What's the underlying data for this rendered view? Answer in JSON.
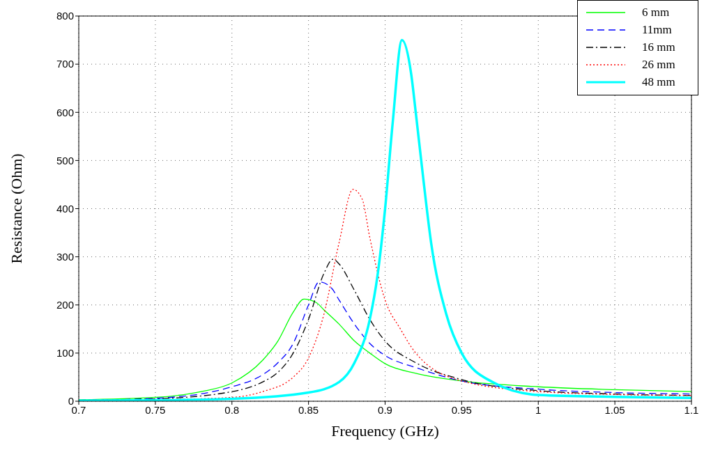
{
  "chart_data": {
    "type": "line",
    "xlabel": "Frequency (GHz)",
    "ylabel": "Resistance  (Ohm)",
    "xlim": [
      0.7,
      1.1
    ],
    "xticks": [
      0.7,
      0.75,
      0.8,
      0.85,
      0.9,
      0.95,
      1,
      1.05,
      1.1
    ],
    "ylim": [
      0,
      800
    ],
    "yticks": [
      0,
      100,
      200,
      300,
      400,
      500,
      600,
      700,
      800
    ],
    "grid": true,
    "legend": "top right",
    "marker": "none",
    "series": [
      {
        "name": "6 mm",
        "color": "#00ff00",
        "line_style": "solid",
        "x": [
          0.7,
          0.75,
          0.78,
          0.8,
          0.82,
          0.83,
          0.84,
          0.847,
          0.855,
          0.86,
          0.87,
          0.88,
          0.89,
          0.9,
          0.92,
          0.95,
          1.0,
          1.05,
          1.1
        ],
        "values": [
          3,
          8,
          20,
          38,
          85,
          125,
          185,
          212,
          205,
          190,
          160,
          125,
          100,
          78,
          58,
          42,
          30,
          24,
          20
        ]
      },
      {
        "name": "11mm",
        "color": "#0000ff",
        "line_style": "dashed",
        "x": [
          0.7,
          0.75,
          0.8,
          0.82,
          0.83,
          0.84,
          0.85,
          0.857,
          0.865,
          0.87,
          0.88,
          0.89,
          0.9,
          0.92,
          0.95,
          1.0,
          1.05,
          1.1
        ],
        "values": [
          2,
          6,
          30,
          55,
          80,
          120,
          200,
          248,
          235,
          210,
          160,
          120,
          95,
          70,
          42,
          25,
          18,
          15
        ]
      },
      {
        "name": "16 mm",
        "color": "#000000",
        "line_style": "dashdot",
        "x": [
          0.7,
          0.75,
          0.8,
          0.82,
          0.83,
          0.84,
          0.85,
          0.86,
          0.866,
          0.87,
          0.88,
          0.89,
          0.9,
          0.92,
          0.95,
          1.0,
          1.05,
          1.1
        ],
        "values": [
          2,
          5,
          20,
          40,
          60,
          100,
          170,
          265,
          295,
          285,
          230,
          170,
          125,
          80,
          45,
          22,
          15,
          12
        ]
      },
      {
        "name": "26 mm",
        "color": "#ff0000",
        "line_style": "dotted",
        "x": [
          0.7,
          0.75,
          0.8,
          0.82,
          0.84,
          0.85,
          0.86,
          0.87,
          0.879,
          0.885,
          0.89,
          0.9,
          0.91,
          0.92,
          0.95,
          1.0,
          1.05,
          1.1
        ],
        "values": [
          1,
          3,
          8,
          20,
          50,
          90,
          180,
          330,
          440,
          420,
          340,
          210,
          150,
          100,
          42,
          20,
          14,
          12
        ]
      },
      {
        "name": "48 mm",
        "color": "#00ffff",
        "line_style": "solid",
        "x": [
          0.7,
          0.75,
          0.8,
          0.85,
          0.87,
          0.88,
          0.89,
          0.895,
          0.9,
          0.905,
          0.911,
          0.917,
          0.92,
          0.925,
          0.93,
          0.94,
          0.95,
          0.97,
          1.0,
          1.05,
          1.1
        ],
        "values": [
          1,
          2,
          5,
          18,
          40,
          80,
          170,
          260,
          400,
          580,
          750,
          680,
          600,
          460,
          330,
          180,
          100,
          40,
          13,
          9,
          7
        ]
      }
    ]
  }
}
